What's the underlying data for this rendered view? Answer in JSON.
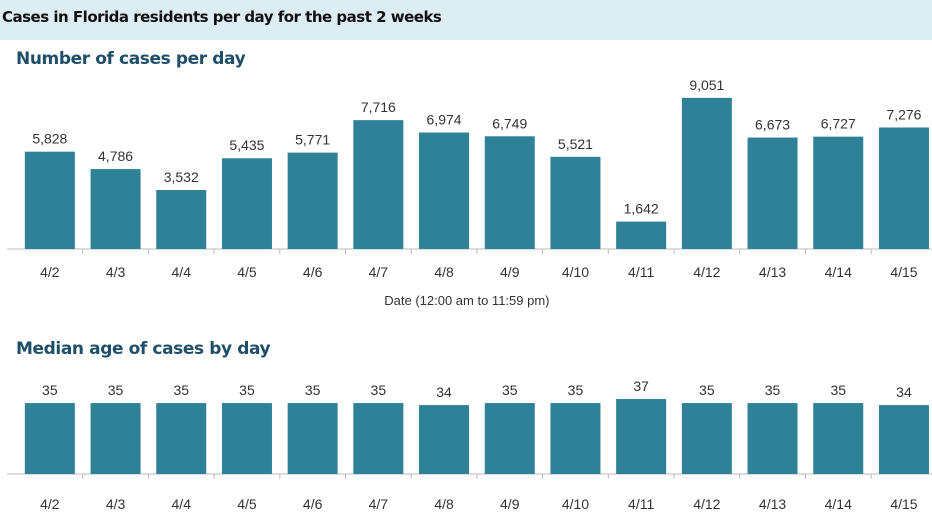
{
  "banner": {
    "title": "Cases in Florida residents per day for the past 2 weeks"
  },
  "colors": {
    "bar": "#2f8198",
    "axis": "#bbbbbb",
    "banner_bg": "#dcedf4",
    "section_title": "#1f4e68"
  },
  "chart_data": [
    {
      "type": "bar",
      "title": "Number of cases per day",
      "xlabel": "Date (12:00 am to 11:59 pm)",
      "ylabel": "",
      "categories": [
        "4/2",
        "4/3",
        "4/4",
        "4/5",
        "4/6",
        "4/7",
        "4/8",
        "4/9",
        "4/10",
        "4/11",
        "4/12",
        "4/13",
        "4/14",
        "4/15"
      ],
      "values": [
        5828,
        4786,
        3532,
        5435,
        5771,
        7716,
        6974,
        6749,
        5521,
        1642,
        9051,
        6673,
        6727,
        7276
      ],
      "labels": [
        "5,828",
        "4,786",
        "3,532",
        "5,435",
        "5,771",
        "7,716",
        "6,974",
        "6,749",
        "5,521",
        "1,642",
        "9,051",
        "6,673",
        "6,727",
        "7,276"
      ],
      "ylim": [
        0,
        10000
      ],
      "grid": false
    },
    {
      "type": "bar",
      "title": "Median age of cases by day",
      "xlabel": "",
      "ylabel": "",
      "categories": [
        "4/2",
        "4/3",
        "4/4",
        "4/5",
        "4/6",
        "4/7",
        "4/8",
        "4/9",
        "4/10",
        "4/11",
        "4/12",
        "4/13",
        "4/14",
        "4/15"
      ],
      "values": [
        35,
        35,
        35,
        35,
        35,
        35,
        34,
        35,
        35,
        37,
        35,
        35,
        35,
        34
      ],
      "labels": [
        "35",
        "35",
        "35",
        "35",
        "35",
        "35",
        "34",
        "35",
        "35",
        "37",
        "35",
        "35",
        "35",
        "34"
      ],
      "ylim": [
        0,
        38
      ],
      "grid": false
    }
  ]
}
